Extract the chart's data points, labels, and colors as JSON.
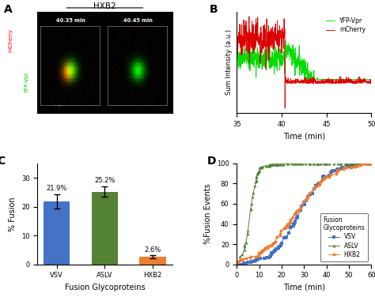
{
  "panel_A": {
    "title": "HXB2",
    "label1": "40.35 min",
    "label2": "40.45 min",
    "scale_bar": "1 μm",
    "ylabel_red": "mCherry",
    "ylabel_green": "YFP-Vpr"
  },
  "panel_B": {
    "xlabel": "Time (min)",
    "ylabel": "Sum Intensity (a.u.)",
    "xlim": [
      35,
      50
    ],
    "xticks": [
      35,
      40,
      45,
      50
    ],
    "legend": [
      "YFP-Vpr",
      "mCherry"
    ],
    "colors": [
      "#00dd00",
      "#dd0000"
    ]
  },
  "panel_C": {
    "categories": [
      "VSV",
      "ASLV",
      "HXB2"
    ],
    "values": [
      21.9,
      25.2,
      2.6
    ],
    "errors": [
      2.5,
      1.8,
      0.5
    ],
    "bar_colors": [
      "#4472C4",
      "#548235",
      "#ED7D31"
    ],
    "labels": [
      "21.9%",
      "25.2%",
      "2.6%"
    ],
    "xlabel": "Fusion Glycoproteins",
    "ylabel": "% Fusion",
    "ylim": [
      0,
      35
    ],
    "yticks": [
      0,
      10,
      20,
      30
    ]
  },
  "panel_D": {
    "xlabel": "Time (min)",
    "ylabel": "%Fusion Events",
    "xlim": [
      0,
      60
    ],
    "ylim": [
      0,
      100
    ],
    "xticks": [
      0,
      10,
      20,
      30,
      40,
      50,
      60
    ],
    "yticks": [
      0,
      20,
      40,
      60,
      80,
      100
    ],
    "legend_title": "Fusion\nGlycoproteins",
    "legend": [
      "VSV",
      "ASLV",
      "HXB2"
    ],
    "colors": [
      "#4472C4",
      "#548235",
      "#ED7D31"
    ],
    "markers": [
      "s",
      "^",
      "o"
    ]
  }
}
